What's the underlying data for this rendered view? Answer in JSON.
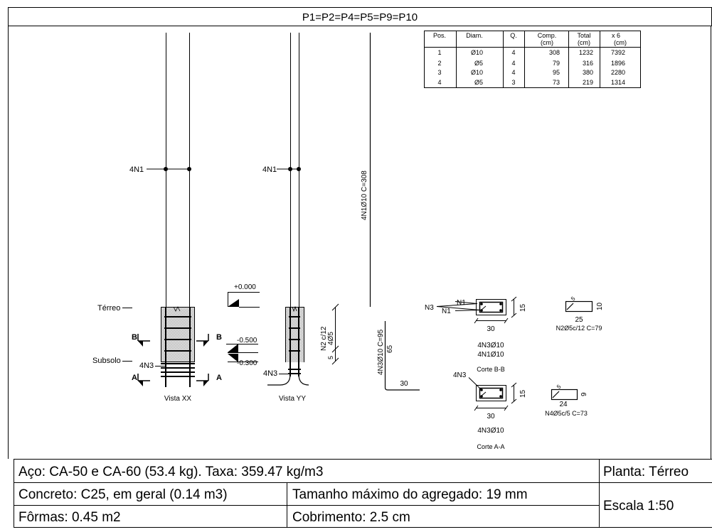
{
  "drawing_title": "P1=P2=P4=P5=P9=P10",
  "table": {
    "headers": [
      [
        "Pos.",
        ""
      ],
      [
        "Diam.",
        ""
      ],
      [
        "Q.",
        ""
      ],
      [
        "Comp.",
        "(cm)"
      ],
      [
        "Total",
        "(cm)"
      ],
      [
        "x 6",
        "(cm)"
      ]
    ],
    "rows": [
      [
        "1",
        "Ø10",
        "4",
        "308",
        "1232",
        "7392"
      ],
      [
        "2",
        "Ø5",
        "4",
        "79",
        "316",
        "1896"
      ],
      [
        "3",
        "Ø10",
        "4",
        "95",
        "380",
        "2280"
      ],
      [
        "4",
        "Ø5",
        "3",
        "73",
        "219",
        "1314"
      ]
    ]
  },
  "labels": {
    "n1_xx": "4N1",
    "n1_yy": "4N1",
    "bar_long": "4N1Ø10 C=308",
    "elev_zero": "+0.000",
    "elev_500": "-0.500",
    "elev_300": "-0.300",
    "terreo": "Térreo",
    "subsolo": "Subsolo",
    "n3_xx": "4N3",
    "n3_yy": "4N3",
    "section_b_left": "B",
    "section_b_right": "B",
    "section_a_left": "A",
    "section_a_right": "A",
    "stirrup_spacing": "N2 c/12",
    "stirrup_count": "4Ø5",
    "stirrup_gap": "5",
    "bar_short": "4N3Ø10 C=95",
    "bar_short_len": "65",
    "bar_short_hook": "30",
    "vista_xx": "Vista XX",
    "vista_yy": "Vista YY"
  },
  "section_bb": {
    "label_n3": "N3",
    "label_n1_top": "N1",
    "label_n1_bottom": "N1",
    "width": "30",
    "height": "15",
    "bars_line1": "4N3Ø10",
    "bars_line2": "4N1Ø10",
    "title": "Corte B-B"
  },
  "section_aa": {
    "label_n3": "4N3",
    "width": "30",
    "height": "15",
    "bars_line1": "4N3Ø10",
    "title": "Corte A-A"
  },
  "stirrup_n2": {
    "hook": "5",
    "height": "10",
    "width": "25",
    "spec": "N2Ø5c/12 C=79"
  },
  "stirrup_n4": {
    "hook": "5",
    "height": "9",
    "width": "24",
    "spec": "N4Ø5c/5 C=73"
  },
  "legend": {
    "steel": "Aço: CA-50 e CA-60 (53.4 kg). Taxa: 359.47 kg/m3",
    "plan": "Planta: Térreo",
    "concrete": "Concreto: C25, em geral (0.14 m3)",
    "aggregate": "Tamanho máximo do agregado: 19 mm",
    "scale": "Escala 1:50",
    "forms": "Fôrmas: 0.45 m2",
    "cover": "Cobrimento: 2.5 cm"
  }
}
